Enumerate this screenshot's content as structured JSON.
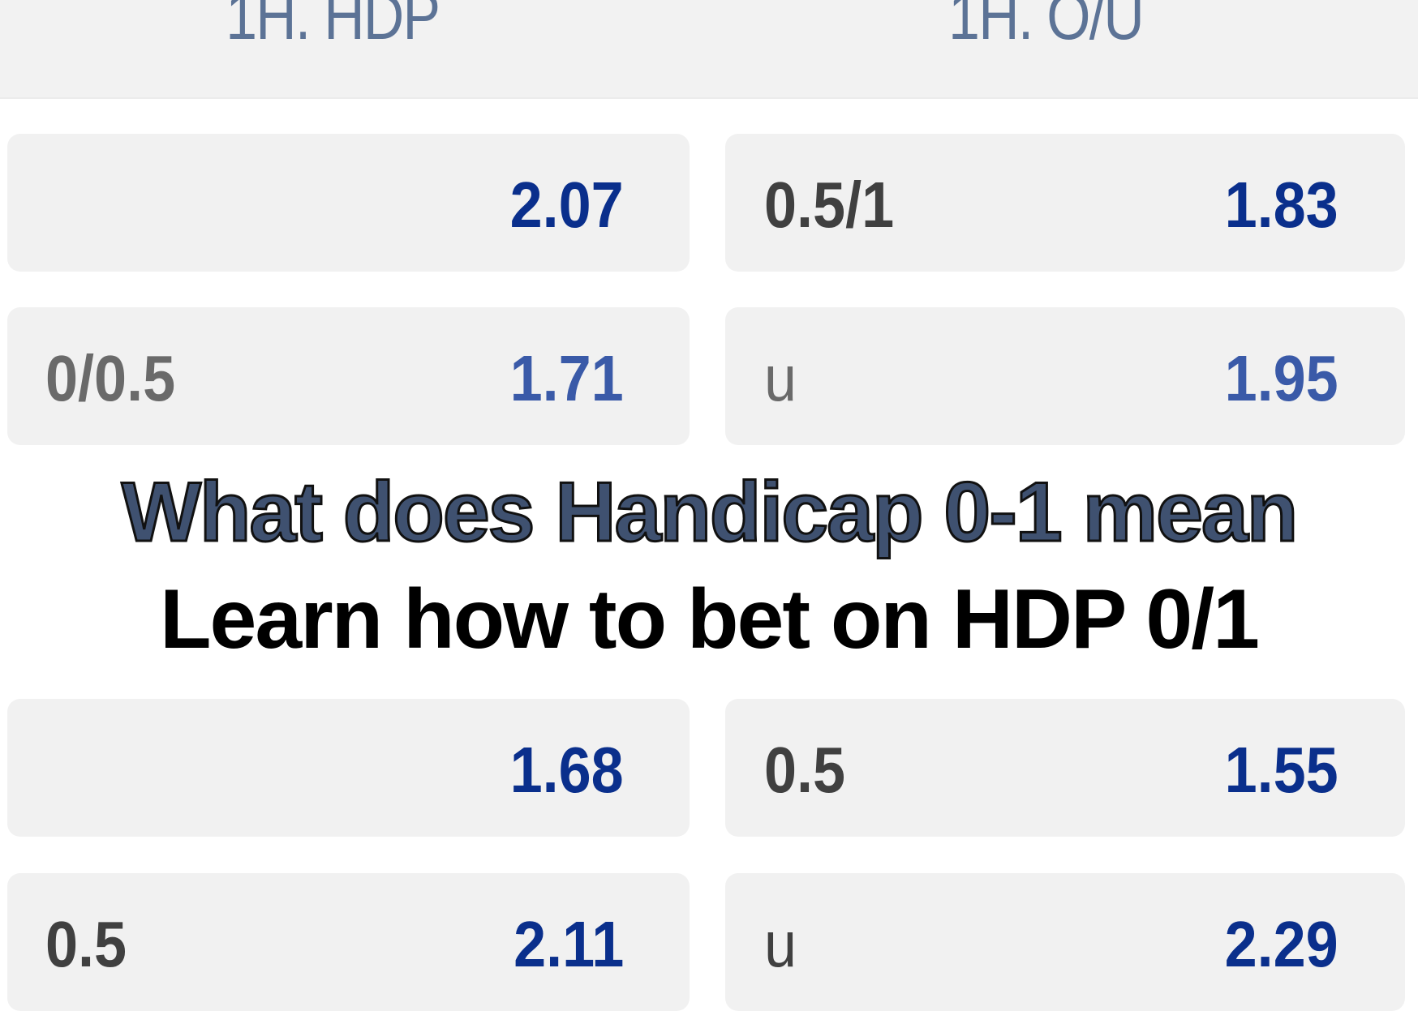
{
  "header": {
    "col1": "1H. HDP",
    "col2": "1H. O/U"
  },
  "rows": [
    {
      "hdp_line": "",
      "hdp_odds": "2.07",
      "ou_line": "0.5/1",
      "ou_odds": "1.83"
    },
    {
      "hdp_line": "0/0.5",
      "hdp_odds": "1.71",
      "ou_line": "u",
      "ou_odds": "1.95"
    },
    {
      "hdp_line": "",
      "hdp_odds": "1.68",
      "ou_line": "0.5",
      "ou_odds": "1.55"
    },
    {
      "hdp_line": "0.5",
      "hdp_odds": "2.11",
      "ou_line": "u",
      "ou_odds": "2.29"
    }
  ],
  "overlay": {
    "line1": "What does Handicap 0-1 mean",
    "line2": "Learn how to bet on HDP 0/1"
  },
  "colors": {
    "odds": "#0a2f8c",
    "header_text": "#5c7396",
    "title1": "#3f5170",
    "card_bg": "#f1f1f1"
  }
}
